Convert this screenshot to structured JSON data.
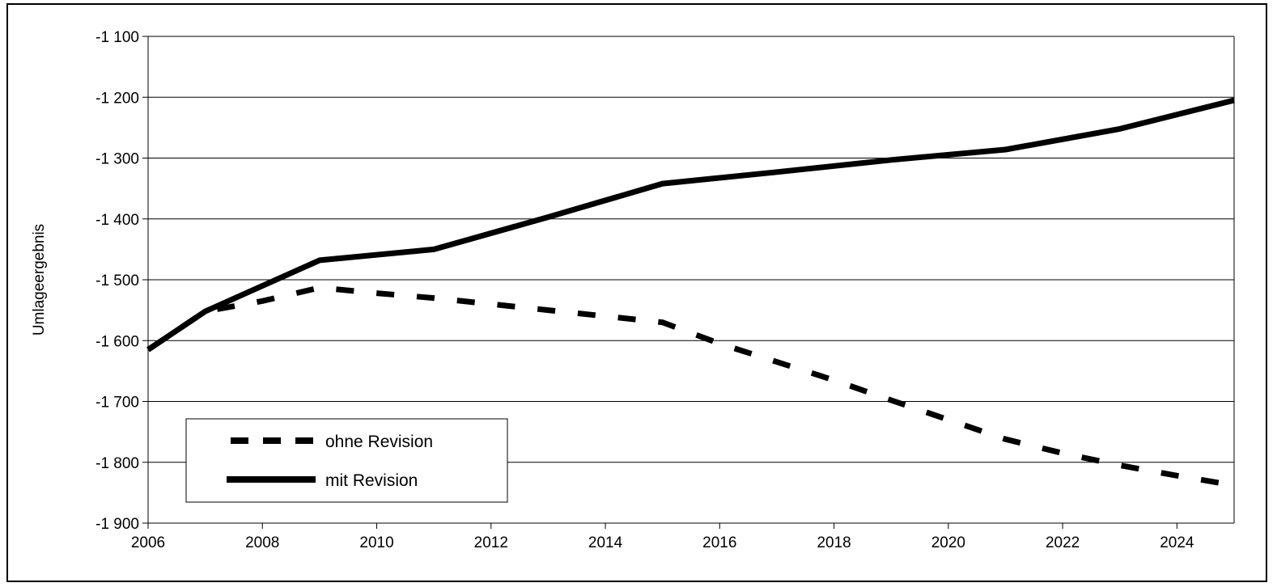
{
  "chart_data": {
    "type": "line",
    "title": "",
    "xlabel": "",
    "ylabel": "Umlageergebnis",
    "xlim": [
      2006,
      2025
    ],
    "ylim": [
      -1900,
      -1100
    ],
    "x_ticks": [
      2006,
      2008,
      2010,
      2012,
      2014,
      2016,
      2018,
      2020,
      2022,
      2024
    ],
    "x_tick_labels": [
      "2006",
      "2008",
      "2010",
      "2012",
      "2014",
      "2016",
      "2018",
      "2020",
      "2022",
      "2024"
    ],
    "y_ticks": [
      -1100,
      -1200,
      -1300,
      -1400,
      -1500,
      -1600,
      -1700,
      -1800,
      -1900
    ],
    "y_tick_labels": [
      "-1 100",
      "-1 200",
      "-1 300",
      "-1 400",
      "-1 500",
      "-1 600",
      "-1 700",
      "-1 800",
      "-1 900"
    ],
    "grid": "horizontal",
    "legend_position": "bottom-left",
    "series": [
      {
        "name": "ohne Revision",
        "style": "dashed",
        "color": "#000000",
        "x": [
          2006,
          2007,
          2008,
          2009,
          2010,
          2011,
          2012,
          2013,
          2014,
          2015,
          2016,
          2017,
          2018,
          2019,
          2020,
          2021,
          2022,
          2023,
          2024,
          2025
        ],
        "values": [
          -1615,
          -1552,
          -1535,
          -1513,
          -1522,
          -1530,
          -1540,
          -1550,
          -1560,
          -1570,
          -1605,
          -1635,
          -1665,
          -1698,
          -1730,
          -1762,
          -1785,
          -1805,
          -1822,
          -1838
        ]
      },
      {
        "name": "mit Revision",
        "style": "solid",
        "color": "#000000",
        "x": [
          2006,
          2007,
          2009,
          2011,
          2013,
          2015,
          2017,
          2019,
          2021,
          2023,
          2025
        ],
        "values": [
          -1615,
          -1552,
          -1468,
          -1450,
          -1397,
          -1342,
          -1323,
          -1303,
          -1286,
          -1252,
          -1205
        ]
      }
    ]
  }
}
